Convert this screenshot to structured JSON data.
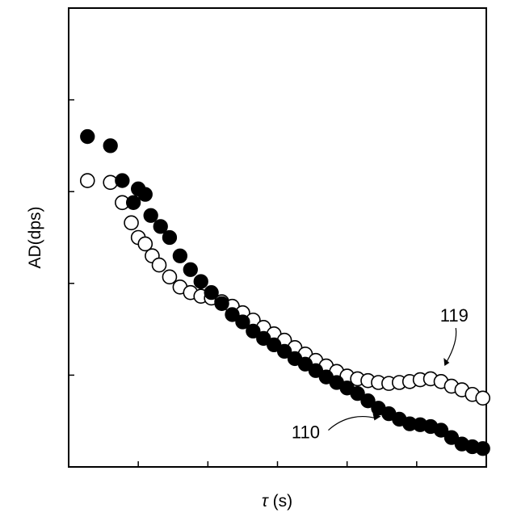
{
  "chart_data": {
    "type": "scatter",
    "title": "",
    "xlabel_symbol": "τ",
    "xlabel_unit": " (s)",
    "ylabel": "AD(dps)",
    "xlim": [
      0,
      6
    ],
    "ylim": [
      0,
      5
    ],
    "x_ticks": [
      1,
      2,
      3,
      4,
      5
    ],
    "y_ticks": [
      1,
      2,
      3,
      4
    ],
    "tick_labels_shown": false,
    "grid": false,
    "series": [
      {
        "name": "110",
        "marker": "filled",
        "x": [
          0.27,
          0.6,
          0.77,
          0.93,
          1.0,
          1.1,
          1.18,
          1.32,
          1.45,
          1.6,
          1.75,
          1.9,
          2.05,
          2.2,
          2.35,
          2.5,
          2.65,
          2.8,
          2.95,
          3.1,
          3.25,
          3.4,
          3.55,
          3.7,
          3.85,
          4.0,
          4.15,
          4.3,
          4.45,
          4.6,
          4.75,
          4.9,
          5.05,
          5.2,
          5.35,
          5.5,
          5.65,
          5.8,
          5.95
        ],
        "y": [
          3.6,
          3.5,
          3.12,
          2.88,
          3.03,
          2.97,
          2.74,
          2.62,
          2.5,
          2.3,
          2.15,
          2.02,
          1.9,
          1.78,
          1.66,
          1.58,
          1.48,
          1.4,
          1.33,
          1.26,
          1.18,
          1.12,
          1.05,
          0.98,
          0.92,
          0.86,
          0.8,
          0.72,
          0.64,
          0.58,
          0.52,
          0.47,
          0.46,
          0.44,
          0.4,
          0.32,
          0.25,
          0.22,
          0.2
        ]
      },
      {
        "name": "119",
        "marker": "open",
        "x": [
          0.27,
          0.6,
          0.77,
          0.9,
          1.0,
          1.1,
          1.2,
          1.3,
          1.45,
          1.6,
          1.75,
          1.9,
          2.05,
          2.2,
          2.35,
          2.5,
          2.65,
          2.8,
          2.95,
          3.1,
          3.25,
          3.4,
          3.55,
          3.7,
          3.85,
          4.0,
          4.15,
          4.3,
          4.45,
          4.6,
          4.75,
          4.9,
          5.05,
          5.2,
          5.35,
          5.5,
          5.65,
          5.8,
          5.95
        ],
        "y": [
          3.12,
          3.1,
          2.88,
          2.66,
          2.5,
          2.43,
          2.3,
          2.2,
          2.07,
          1.96,
          1.9,
          1.86,
          1.84,
          1.8,
          1.75,
          1.68,
          1.6,
          1.52,
          1.45,
          1.38,
          1.3,
          1.23,
          1.16,
          1.1,
          1.04,
          0.99,
          0.96,
          0.94,
          0.92,
          0.91,
          0.92,
          0.93,
          0.95,
          0.96,
          0.93,
          0.88,
          0.84,
          0.79,
          0.75
        ]
      }
    ],
    "annotations": [
      {
        "text": "119",
        "series": "119",
        "point_x": 5.4,
        "point_y": 1.1
      },
      {
        "text": "110",
        "series": "110",
        "point_x": 4.45,
        "point_y": 0.55
      }
    ]
  }
}
